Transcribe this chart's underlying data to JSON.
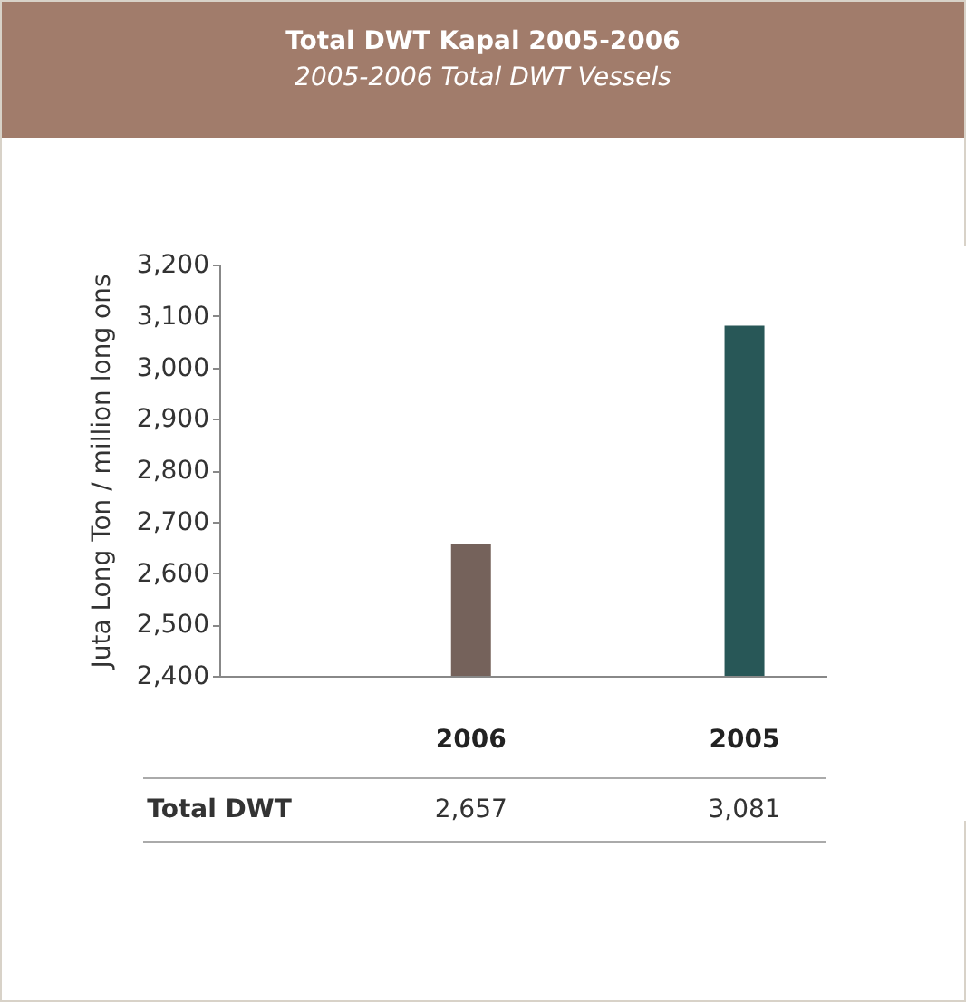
{
  "chart_data": {
    "type": "bar",
    "title": "Total DWT Kapal 2005-2006",
    "subtitle": "2005-2006 Total DWT Vessels",
    "ylabel": "Juta Long Ton / million long ons",
    "categories": [
      "2006",
      "2005"
    ],
    "series": [
      {
        "name": "Total DWT",
        "values": [
          2657,
          3081
        ],
        "value_labels": [
          "2,657",
          "3,081"
        ]
      }
    ],
    "colors": [
      "#75625b",
      "#285757"
    ],
    "ylim": [
      2400,
      3200
    ],
    "yticks": [
      {
        "value": 2400,
        "label": "2,400"
      },
      {
        "value": 2500,
        "label": "2,500"
      },
      {
        "value": 2600,
        "label": "2,600"
      },
      {
        "value": 2700,
        "label": "2,700"
      },
      {
        "value": 2800,
        "label": "2,800"
      },
      {
        "value": 2900,
        "label": "2,900"
      },
      {
        "value": 3000,
        "label": "3,000"
      },
      {
        "value": 3100,
        "label": "3,100"
      },
      {
        "value": 3200,
        "label": "3,200"
      }
    ],
    "grid": false
  }
}
